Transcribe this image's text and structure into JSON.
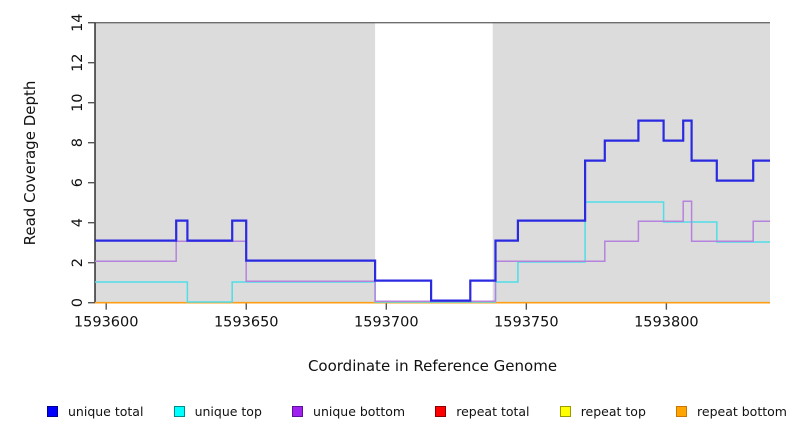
{
  "chart_data": {
    "type": "line",
    "subtype": "step-coverage",
    "title": "",
    "xlabel": "Coordinate in Reference Genome",
    "ylabel": "Read Coverage Depth",
    "xlim": [
      1593596,
      1593837
    ],
    "ylim": [
      0,
      14
    ],
    "x_ticks": [
      1593600,
      1593650,
      1593700,
      1593750,
      1593800
    ],
    "y_ticks": [
      0,
      2,
      4,
      6,
      8,
      10,
      12,
      14
    ],
    "grid": false,
    "legend_position": "bottom",
    "background_regions": [
      {
        "from": 1593596,
        "to": 1593696,
        "color": "#dcdcdc"
      },
      {
        "from": 1593738,
        "to": 1593837,
        "color": "#dcdcdc"
      }
    ],
    "series": [
      {
        "name": "unique total",
        "line_color": "#2a2ae0",
        "legend_fill": "#0000ff",
        "legend_border": "#000090",
        "steps": [
          [
            1593596,
            3
          ],
          [
            1593625,
            4
          ],
          [
            1593629,
            3
          ],
          [
            1593645,
            4
          ],
          [
            1593650,
            2
          ],
          [
            1593696,
            1
          ],
          [
            1593716,
            0
          ],
          [
            1593730,
            1
          ],
          [
            1593739,
            3
          ],
          [
            1593747,
            4
          ],
          [
            1593771,
            7
          ],
          [
            1593778,
            8
          ],
          [
            1593790,
            9
          ],
          [
            1593799,
            8
          ],
          [
            1593806,
            9
          ],
          [
            1593809,
            7
          ],
          [
            1593818,
            6
          ],
          [
            1593831,
            7
          ]
        ]
      },
      {
        "name": "unique top",
        "line_color": "#4fdde6",
        "legend_fill": "#00ffff",
        "legend_border": "#008b8b",
        "steps": [
          [
            1593596,
            1
          ],
          [
            1593629,
            0
          ],
          [
            1593645,
            1
          ],
          [
            1593696,
            0
          ],
          [
            1593739,
            1
          ],
          [
            1593747,
            2
          ],
          [
            1593771,
            5
          ],
          [
            1593799,
            4
          ],
          [
            1593818,
            3
          ]
        ]
      },
      {
        "name": "unique bottom",
        "line_color": "#b583dd",
        "legend_fill": "#a020f0",
        "legend_border": "#5c1199",
        "steps": [
          [
            1593596,
            2
          ],
          [
            1593625,
            3
          ],
          [
            1593650,
            1
          ],
          [
            1593696,
            0
          ],
          [
            1593739,
            2
          ],
          [
            1593778,
            3
          ],
          [
            1593790,
            4
          ],
          [
            1593806,
            5
          ],
          [
            1593809,
            3
          ],
          [
            1593831,
            4
          ]
        ]
      },
      {
        "name": "repeat total",
        "line_color": "#cc0000",
        "legend_fill": "#ff0000",
        "legend_border": "#8b0000",
        "steps": [
          [
            1593596,
            0
          ]
        ]
      },
      {
        "name": "repeat top",
        "line_color": "#eeee00",
        "legend_fill": "#ffff00",
        "legend_border": "#9b9b00",
        "steps": [
          [
            1593596,
            0
          ]
        ]
      },
      {
        "name": "repeat bottom",
        "line_color": "#ff9e14",
        "legend_fill": "#ffa500",
        "legend_border": "#c87606",
        "steps": [
          [
            1593596,
            0
          ]
        ]
      }
    ]
  }
}
